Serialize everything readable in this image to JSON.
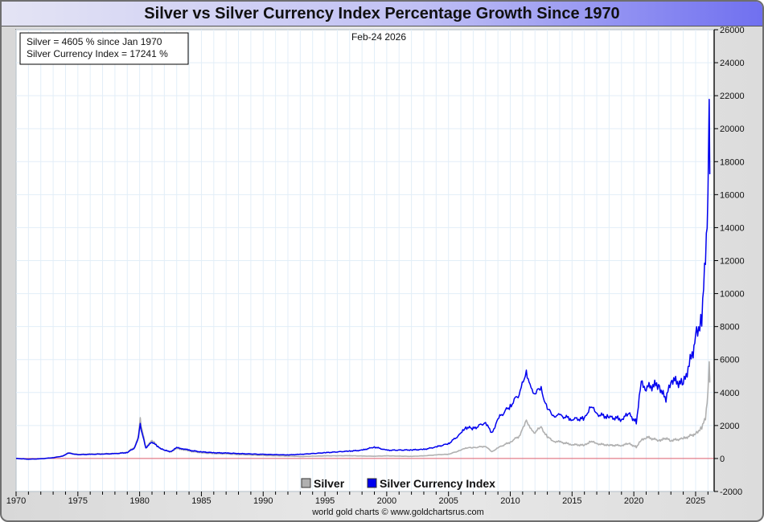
{
  "chart_data": {
    "type": "line",
    "title": "Silver vs Silver Currency Index Percentage Growth Since 1970",
    "date_label": "Feb-24  2026",
    "info_box": [
      "Silver = 4605 % since Jan 1970",
      "Silver Currency Index = 17241 %"
    ],
    "credit": "world gold charts © www.goldchartsrus.com",
    "xlabel": "",
    "ylabel": "",
    "xlim": [
      1970,
      2026.5
    ],
    "ylim": [
      -2000,
      26000
    ],
    "grid": true,
    "legend_position": "bottom-center",
    "x_ticks": [
      "1970",
      "1975",
      "1980",
      "1985",
      "1990",
      "1995",
      "2000",
      "2005",
      "2010",
      "2015",
      "2020",
      "2025"
    ],
    "y_ticks": [
      "26000",
      "24000",
      "22000",
      "20000",
      "18000",
      "16000",
      "14000",
      "12000",
      "10000",
      "8000",
      "6000",
      "4000",
      "2000",
      "0",
      "-2000"
    ],
    "zero_line_color": "#e06070",
    "series": [
      {
        "name": "Silver",
        "color": "#b0b0b0",
        "x": [
          1970,
          1971,
          1972,
          1973,
          1973.8,
          1974.2,
          1975,
          1976,
          1977,
          1978,
          1979,
          1979.6,
          1979.9,
          1980.05,
          1980.2,
          1980.5,
          1980.8,
          1981,
          1981.5,
          1982,
          1982.5,
          1983,
          1983.5,
          1984,
          1985,
          1986,
          1987,
          1988,
          1990,
          1992,
          1993,
          1995,
          1997,
          1998,
          1999,
          2000,
          2002,
          2003,
          2004,
          2005,
          2006,
          2006.4,
          2007,
          2008,
          2008.5,
          2009,
          2010,
          2010.8,
          2011.3,
          2011.6,
          2012,
          2012.5,
          2013,
          2013.5,
          2014,
          2015,
          2016,
          2016.5,
          2017,
          2018,
          2019,
          2019.6,
          2020.2,
          2020.6,
          2021,
          2022,
          2022.6,
          2023,
          2024,
          2024.8,
          2025,
          2025.5,
          2025.8,
          2026,
          2026.1,
          2026.15
        ],
        "values": [
          0,
          -40,
          -20,
          50,
          150,
          350,
          250,
          270,
          290,
          300,
          380,
          700,
          1400,
          2400,
          1700,
          700,
          900,
          1100,
          700,
          500,
          400,
          600,
          550,
          450,
          350,
          300,
          280,
          240,
          180,
          150,
          120,
          160,
          170,
          150,
          140,
          160,
          130,
          160,
          220,
          260,
          500,
          650,
          650,
          750,
          400,
          650,
          1000,
          1400,
          2400,
          1800,
          1600,
          1900,
          1300,
          1050,
          1000,
          850,
          800,
          1050,
          900,
          800,
          800,
          900,
          700,
          1100,
          1300,
          1100,
          1200,
          1100,
          1200,
          1450,
          1500,
          1900,
          2400,
          4200,
          6200,
          4605
        ]
      },
      {
        "name": "Silver Currency Index",
        "color": "#0000ee",
        "x": [
          1970,
          1971,
          1972,
          1973,
          1973.8,
          1974.2,
          1975,
          1976,
          1977,
          1978,
          1979,
          1979.6,
          1979.9,
          1980.05,
          1980.2,
          1980.5,
          1980.8,
          1981,
          1981.5,
          1982,
          1982.5,
          1983,
          1983.5,
          1984,
          1985,
          1986,
          1987,
          1988,
          1990,
          1992,
          1993,
          1995,
          1997,
          1998,
          1999,
          2000,
          2002,
          2003,
          2004,
          2005,
          2006,
          2006.4,
          2007,
          2008,
          2008.5,
          2009,
          2010,
          2010.8,
          2011.3,
          2011.6,
          2012,
          2012.5,
          2013,
          2013.5,
          2014,
          2015,
          2016,
          2016.5,
          2017,
          2018,
          2019,
          2019.6,
          2020.2,
          2020.6,
          2021,
          2022,
          2022.6,
          2023,
          2024,
          2024.8,
          2025,
          2025.5,
          2025.8,
          2026,
          2026.1,
          2026.15
        ],
        "values": [
          0,
          -40,
          -20,
          50,
          150,
          330,
          230,
          250,
          270,
          290,
          360,
          650,
          1300,
          2100,
          1500,
          650,
          850,
          1000,
          700,
          500,
          420,
          650,
          600,
          500,
          400,
          350,
          330,
          300,
          250,
          220,
          250,
          350,
          450,
          500,
          700,
          500,
          520,
          550,
          700,
          900,
          1500,
          1900,
          1800,
          2200,
          1500,
          2400,
          3200,
          4000,
          5400,
          4300,
          4000,
          4200,
          3000,
          2600,
          2600,
          2400,
          2400,
          3200,
          2700,
          2500,
          2400,
          2700,
          2200,
          4600,
          4300,
          4500,
          3500,
          4800,
          4500,
          6500,
          7500,
          8500,
          12000,
          16500,
          23000,
          17241
        ]
      }
    ]
  }
}
